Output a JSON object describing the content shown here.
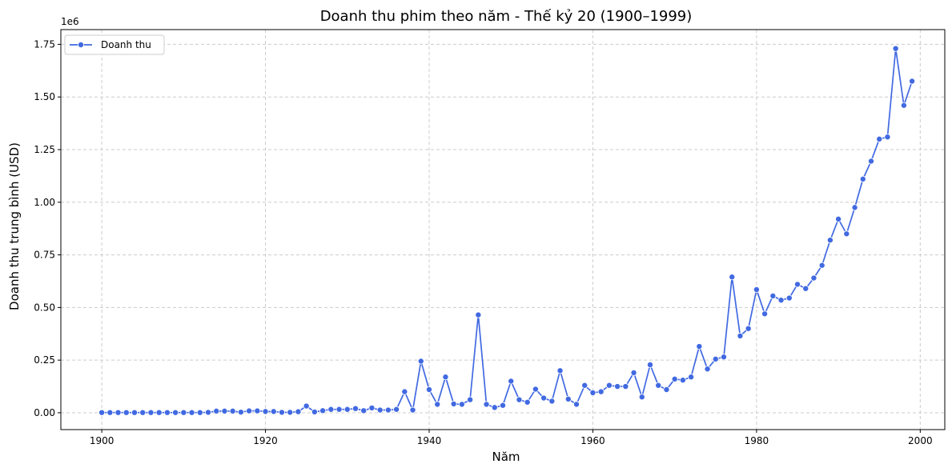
{
  "chart_data": {
    "type": "line",
    "title": "Doanh thu phim theo năm - Thế kỷ 20 (1900–1999)",
    "xlabel": "Năm",
    "ylabel": "Doanh thu trung bình (USD)",
    "y_scale_label": "1e6",
    "xlim": [
      1895,
      2003
    ],
    "ylim": [
      -0.08,
      1.82
    ],
    "x_ticks": [
      1900,
      1920,
      1940,
      1960,
      1980,
      2000
    ],
    "y_ticks": [
      0.0,
      0.25,
      0.5,
      0.75,
      1.0,
      1.25,
      1.5,
      1.75
    ],
    "y_tick_labels": [
      "0.00",
      "0.25",
      "0.50",
      "0.75",
      "1.00",
      "1.25",
      "1.50",
      "1.75"
    ],
    "grid": true,
    "legend_position": "top-left",
    "color": "#4169e1",
    "series": [
      {
        "name": "Doanh thu",
        "x": [
          1900,
          1901,
          1902,
          1903,
          1904,
          1905,
          1906,
          1907,
          1908,
          1909,
          1910,
          1911,
          1912,
          1913,
          1914,
          1915,
          1916,
          1917,
          1918,
          1919,
          1920,
          1921,
          1922,
          1923,
          1924,
          1925,
          1926,
          1927,
          1928,
          1929,
          1930,
          1931,
          1932,
          1933,
          1934,
          1935,
          1936,
          1937,
          1938,
          1939,
          1940,
          1941,
          1942,
          1943,
          1944,
          1945,
          1946,
          1947,
          1948,
          1949,
          1950,
          1951,
          1952,
          1953,
          1954,
          1955,
          1956,
          1957,
          1958,
          1959,
          1960,
          1961,
          1962,
          1963,
          1964,
          1965,
          1966,
          1967,
          1968,
          1969,
          1970,
          1971,
          1972,
          1973,
          1974,
          1975,
          1976,
          1977,
          1978,
          1979,
          1980,
          1981,
          1982,
          1983,
          1984,
          1985,
          1986,
          1987,
          1988,
          1989,
          1990,
          1991,
          1992,
          1993,
          1994,
          1995,
          1996,
          1997,
          1998,
          1999
        ],
        "values": [
          0.001,
          0.001,
          0.001,
          0.001,
          0.001,
          0.001,
          0.001,
          0.001,
          0.001,
          0.001,
          0.001,
          0.001,
          0.001,
          0.002,
          0.008,
          0.008,
          0.008,
          0.003,
          0.009,
          0.009,
          0.006,
          0.006,
          0.002,
          0.002,
          0.005,
          0.032,
          0.004,
          0.01,
          0.016,
          0.016,
          0.016,
          0.02,
          0.01,
          0.023,
          0.013,
          0.013,
          0.016,
          0.1,
          0.013,
          0.245,
          0.11,
          0.04,
          0.17,
          0.042,
          0.04,
          0.062,
          0.465,
          0.04,
          0.025,
          0.035,
          0.15,
          0.062,
          0.05,
          0.112,
          0.07,
          0.055,
          0.2,
          0.065,
          0.04,
          0.13,
          0.095,
          0.1,
          0.13,
          0.125,
          0.125,
          0.19,
          0.075,
          0.228,
          0.13,
          0.11,
          0.16,
          0.155,
          0.17,
          0.315,
          0.208,
          0.255,
          0.265,
          0.645,
          0.365,
          0.4,
          0.585,
          0.47,
          0.555,
          0.535,
          0.545,
          0.61,
          0.59,
          0.64,
          0.7,
          0.82,
          0.92,
          0.85,
          0.975,
          1.11,
          1.195,
          1.3,
          1.31,
          1.73,
          1.46,
          1.575
        ]
      }
    ]
  }
}
